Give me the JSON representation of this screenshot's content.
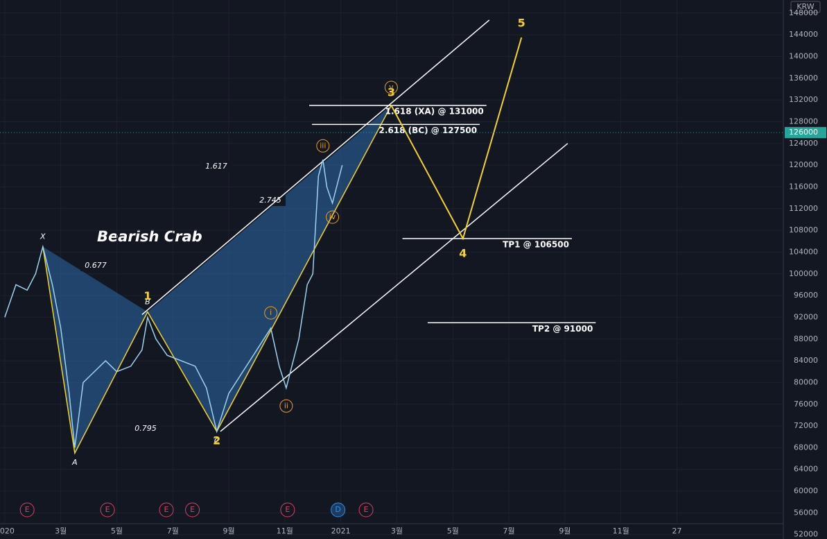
{
  "chart_data": {
    "type": "line",
    "title": "Bearish Crab",
    "currency": "KRW",
    "last_price": 126000,
    "xlim": [
      -0.17,
      27.8
    ],
    "xticks": [
      {
        "value": 0,
        "label": "2020"
      },
      {
        "value": 2,
        "label": "3월"
      },
      {
        "value": 4,
        "label": "5월"
      },
      {
        "value": 6,
        "label": "7월"
      },
      {
        "value": 8,
        "label": "9월"
      },
      {
        "value": 10,
        "label": "11월"
      },
      {
        "value": 12,
        "label": "2021"
      },
      {
        "value": 14,
        "label": "3월"
      },
      {
        "value": 16,
        "label": "5월"
      },
      {
        "value": 18,
        "label": "7월"
      },
      {
        "value": 20,
        "label": "9월"
      },
      {
        "value": 22,
        "label": "11월"
      },
      {
        "value": 24,
        "label": "27"
      }
    ],
    "ylim": [
      51200,
      150400
    ],
    "yticks": [
      52000,
      56000,
      60000,
      64000,
      68000,
      72000,
      76000,
      80000,
      84000,
      88000,
      92000,
      96000,
      100000,
      104000,
      108000,
      112000,
      116000,
      120000,
      124000,
      128000,
      132000,
      136000,
      140000,
      144000,
      148000
    ],
    "series": [
      {
        "color": "#9fd3f0",
        "x": [
          0,
          0.4,
          0.8,
          1.1,
          1.36,
          1.7,
          2.0,
          2.3,
          2.5,
          2.8,
          3.2,
          3.6,
          4.0,
          4.5,
          4.9,
          5.1,
          5.4,
          5.8,
          6.3,
          6.8,
          7.2,
          7.57,
          8.0,
          8.5,
          9.0,
          9.5,
          9.8,
          10.05,
          10.5,
          10.8,
          11.0,
          11.2,
          11.36,
          11.5,
          11.7,
          11.9,
          12.05
        ],
        "values": [
          92000,
          98000,
          97000,
          100000,
          105000,
          98000,
          90000,
          78000,
          68000,
          80000,
          82000,
          84000,
          82000,
          83000,
          86000,
          92000,
          88000,
          85000,
          84000,
          83000,
          79000,
          71000,
          78000,
          82000,
          86000,
          90000,
          83000,
          79000,
          88000,
          98000,
          100000,
          118000,
          121000,
          116000,
          113000,
          117000,
          120000
        ]
      }
    ],
    "pattern": {
      "color": "#2c6aa8",
      "x": [
        1.36,
        2.5,
        5.1,
        7.57,
        13.8
      ],
      "values": [
        105000,
        67000,
        93000,
        71000,
        131000
      ],
      "labels": [
        "X",
        "A",
        "B",
        "C",
        null
      ]
    },
    "ratios": [
      0.677,
      0.795,
      1.617,
      2.745
    ],
    "waves": {
      "color": "#f5d327",
      "x": [
        5.1,
        7.57,
        13.8,
        16.36,
        18.45
      ],
      "values": [
        93000,
        71000,
        131000,
        106500,
        143500
      ],
      "labels": [
        "1",
        "2",
        "3",
        "4",
        "5"
      ]
    },
    "sub_waves": {
      "color": "#f0a020",
      "x": [
        9.5,
        10.05,
        11.36,
        11.7,
        13.8
      ],
      "values": [
        90000,
        79000,
        121000,
        113000,
        131000
      ],
      "labels": [
        "i",
        "ii",
        "iii",
        "iv",
        "v"
      ]
    },
    "levels": [
      {
        "label": "1.618 (XA) @ 131000",
        "value": 131000,
        "x": [
          10.87,
          17.2
        ]
      },
      {
        "label": "2.618 (BC) @ 127500",
        "value": 127500,
        "x": [
          10.97,
          16.96
        ]
      },
      {
        "label": "TP1 @ 106500",
        "value": 106500,
        "x": [
          14.2,
          20.25
        ]
      },
      {
        "label": "TP2 @ 91000",
        "value": 91000,
        "x": [
          15.1,
          21.1
        ]
      }
    ],
    "trend_lines": [
      {
        "x": [
          4.9,
          17.3
        ],
        "values": [
          92500,
          146700
        ]
      },
      {
        "x": [
          7.7,
          20.1
        ],
        "values": [
          71000,
          124000
        ]
      }
    ],
    "events": [
      {
        "label": "E",
        "x": 0.8
      },
      {
        "label": "E",
        "x": 3.67
      },
      {
        "label": "E",
        "x": 5.77
      },
      {
        "label": "E",
        "x": 6.7
      },
      {
        "label": "E",
        "x": 10.1
      },
      {
        "label": "D",
        "x": 11.9
      },
      {
        "label": "E",
        "x": 12.9
      }
    ]
  }
}
